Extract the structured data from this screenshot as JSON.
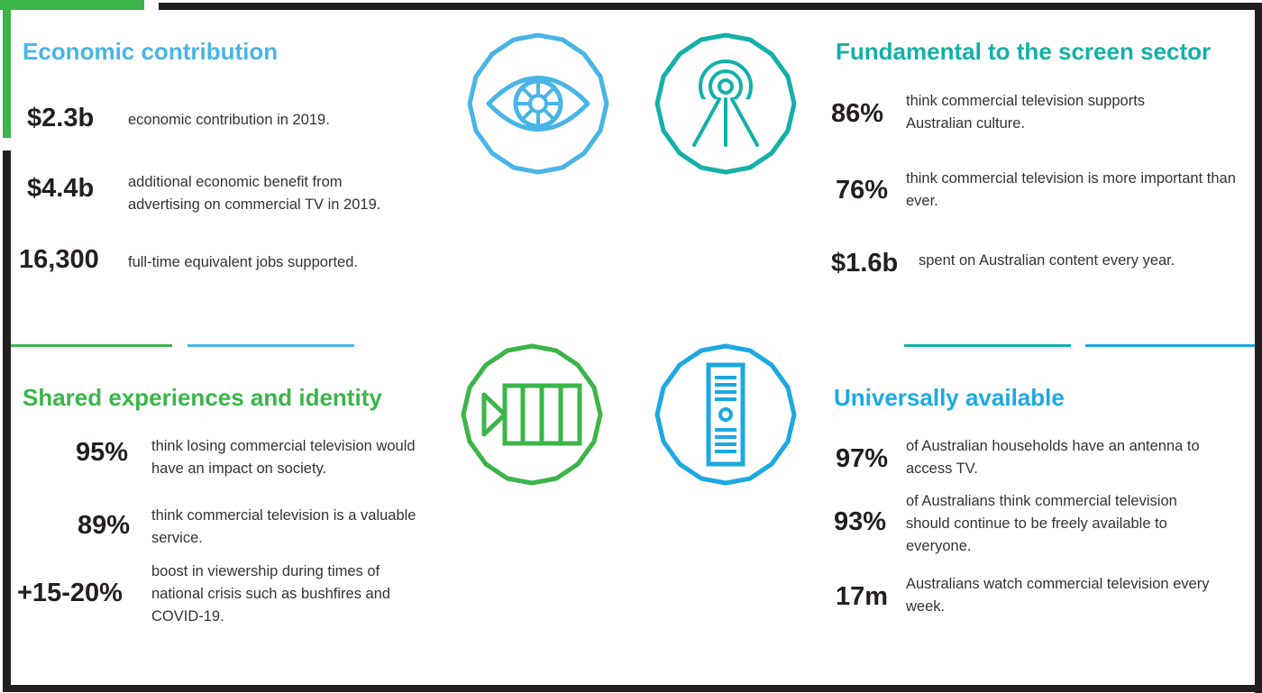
{
  "colors": {
    "green": "#3bb54a",
    "blue": "#49b4e6",
    "teal": "#13b0a8",
    "sky": "#1ca9e1",
    "frame": "#231f20",
    "text": "#333333"
  },
  "icons": [
    "eye-icon",
    "broadcast-tower-icon",
    "film-camera-icon",
    "remote-control-icon"
  ],
  "economic": {
    "title": "Economic contribution",
    "items": [
      {
        "stat": "$2.3b",
        "text": "economic contribution in 2019."
      },
      {
        "stat": "$4.4b",
        "text": "additional economic benefit from advertising on commercial TV in 2019."
      },
      {
        "stat": "16,300",
        "text": "full-time equivalent jobs supported."
      }
    ]
  },
  "screen": {
    "title": "Fundamental to the screen sector",
    "items": [
      {
        "stat": "86%",
        "text": "think commercial television supports Australian culture."
      },
      {
        "stat": "76%",
        "text": "think commercial television is more important than ever."
      },
      {
        "stat": "$1.6b",
        "text": "spent on Australian content every year."
      }
    ]
  },
  "shared": {
    "title": "Shared experiences and identity",
    "items": [
      {
        "stat": "95%",
        "text": "think losing commercial television would have an impact on society."
      },
      {
        "stat": "89%",
        "text": "think commercial television is a valuable service."
      },
      {
        "stat": "+15-20%",
        "text": "boost in viewership during times of national crisis such as bushfires and COVID-19."
      }
    ]
  },
  "universal": {
    "title": "Universally available",
    "items": [
      {
        "stat": "97%",
        "text": "of Australian households have an antenna to access TV."
      },
      {
        "stat": "93%",
        "text": "of Australians think commercial television should continue to be freely available to everyone."
      },
      {
        "stat": "17m",
        "text": "Australians watch commercial television every week."
      }
    ]
  }
}
